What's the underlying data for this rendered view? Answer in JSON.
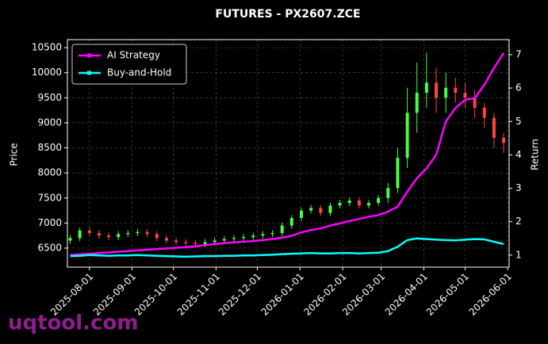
{
  "chart_data": {
    "type": "candlestick",
    "title": "FUTURES - PX2607.ZCE",
    "y_label": "Price",
    "y2_label": "Return",
    "watermark": "uqtool.com",
    "x": [
      "2025-07-18",
      "2025-07-25",
      "2025-08-01",
      "2025-08-08",
      "2025-08-15",
      "2025-08-22",
      "2025-08-29",
      "2025-09-05",
      "2025-09-12",
      "2025-09-19",
      "2025-09-26",
      "2025-10-03",
      "2025-10-10",
      "2025-10-17",
      "2025-10-24",
      "2025-10-31",
      "2025-11-07",
      "2025-11-14",
      "2025-11-21",
      "2025-11-28",
      "2025-12-05",
      "2025-12-12",
      "2025-12-19",
      "2025-12-26",
      "2026-01-02",
      "2026-01-09",
      "2026-01-16",
      "2026-01-23",
      "2026-01-30",
      "2026-02-06",
      "2026-02-13",
      "2026-02-20",
      "2026-02-27",
      "2026-03-06",
      "2026-03-13",
      "2026-03-20",
      "2026-03-27",
      "2026-04-03",
      "2026-04-10",
      "2026-04-17",
      "2026-04-24",
      "2026-05-01",
      "2026-05-08",
      "2026-05-15",
      "2026-05-22",
      "2026-05-29"
    ],
    "candles": {
      "up_color": "#44ff44",
      "down_color": "#ff4444",
      "open": [
        6650,
        6700,
        6850,
        6800,
        6750,
        6720,
        6780,
        6800,
        6820,
        6780,
        6700,
        6650,
        6620,
        6600,
        6580,
        6620,
        6650,
        6680,
        6700,
        6720,
        6750,
        6780,
        6800,
        6950,
        7100,
        7250,
        7300,
        7200,
        7350,
        7400,
        7450,
        7350,
        7400,
        7500,
        7700,
        8300,
        9200,
        9600,
        9800,
        9500,
        9700,
        9600,
        9500,
        9300,
        9100,
        8700
      ],
      "high": [
        6760,
        6910,
        6910,
        6860,
        6810,
        6840,
        6860,
        6880,
        6880,
        6840,
        6760,
        6710,
        6680,
        6660,
        6680,
        6710,
        6740,
        6760,
        6780,
        6810,
        6840,
        6860,
        7010,
        7160,
        7310,
        7360,
        7360,
        7410,
        7460,
        7510,
        7510,
        7460,
        7560,
        7800,
        8500,
        9700,
        10200,
        10400,
        10100,
        10000,
        9900,
        9800,
        9650,
        9400,
        9200,
        8800
      ],
      "low": [
        6590,
        6640,
        6740,
        6690,
        6660,
        6660,
        6720,
        6740,
        6720,
        6640,
        6590,
        6560,
        6540,
        6520,
        6520,
        6560,
        6590,
        6620,
        6640,
        6660,
        6690,
        6720,
        6740,
        6890,
        7040,
        7190,
        7140,
        7140,
        7290,
        7340,
        7290,
        7290,
        7340,
        7400,
        7600,
        8100,
        8800,
        9300,
        9200,
        9200,
        9400,
        9300,
        9100,
        8900,
        8500,
        8400
      ],
      "close": [
        6700,
        6850,
        6800,
        6750,
        6720,
        6780,
        6800,
        6820,
        6780,
        6700,
        6650,
        6620,
        6600,
        6580,
        6620,
        6650,
        6680,
        6700,
        6720,
        6750,
        6780,
        6800,
        6950,
        7100,
        7250,
        7300,
        7200,
        7350,
        7400,
        7450,
        7350,
        7400,
        7500,
        7700,
        8300,
        9200,
        9600,
        9800,
        9500,
        9700,
        9600,
        9500,
        9300,
        9100,
        8700,
        8600
      ]
    },
    "series": [
      {
        "name": "AI Strategy",
        "color": "#ff00ff",
        "axis": "y2",
        "values": [
          1.0,
          1.02,
          1.04,
          1.06,
          1.08,
          1.1,
          1.12,
          1.14,
          1.16,
          1.18,
          1.2,
          1.22,
          1.24,
          1.26,
          1.3,
          1.33,
          1.36,
          1.38,
          1.4,
          1.42,
          1.45,
          1.48,
          1.52,
          1.58,
          1.68,
          1.75,
          1.8,
          1.88,
          1.95,
          2.02,
          2.08,
          2.15,
          2.2,
          2.3,
          2.45,
          2.9,
          3.3,
          3.6,
          4.0,
          5.0,
          5.4,
          5.65,
          5.7,
          6.1,
          6.6,
          7.05
        ]
      },
      {
        "name": "Buy-and-Hold",
        "color": "#00ffff",
        "axis": "y2",
        "values": [
          0.97,
          0.98,
          1.0,
          0.99,
          0.98,
          0.99,
          0.99,
          1.0,
          0.99,
          0.98,
          0.97,
          0.96,
          0.95,
          0.96,
          0.97,
          0.97,
          0.98,
          0.98,
          0.99,
          0.99,
          1.0,
          1.01,
          1.03,
          1.04,
          1.05,
          1.06,
          1.05,
          1.05,
          1.06,
          1.06,
          1.05,
          1.06,
          1.07,
          1.12,
          1.25,
          1.45,
          1.5,
          1.48,
          1.46,
          1.45,
          1.44,
          1.46,
          1.48,
          1.47,
          1.4,
          1.33
        ]
      }
    ],
    "xlim": [
      "2025-07-16",
      "2026-06-02"
    ],
    "xticks": [
      "2025-08-01",
      "2025-09-01",
      "2025-10-01",
      "2025-11-01",
      "2025-12-01",
      "2026-01-01",
      "2026-02-01",
      "2026-03-01",
      "2026-04-01",
      "2026-05-01",
      "2026-06-01"
    ],
    "ylim": [
      6120,
      10660
    ],
    "yticks": [
      6500,
      7000,
      7500,
      8000,
      8500,
      9000,
      9500,
      10000,
      10500
    ],
    "y2lim": [
      0.64,
      7.45
    ],
    "y2ticks": [
      1,
      2,
      3,
      4,
      5,
      6,
      7
    ],
    "grid": true,
    "legend": "upper left"
  }
}
